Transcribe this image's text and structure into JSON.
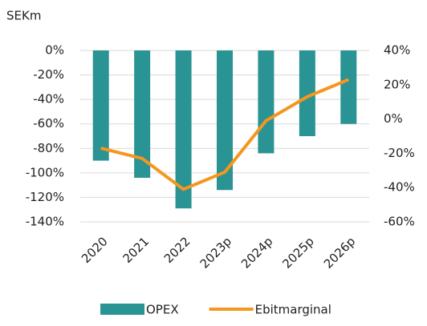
{
  "chart_data": {
    "type": "bar_line",
    "y_axis_label": "SEKm",
    "categories": [
      "2020",
      "2021",
      "2022",
      "2023p",
      "2024p",
      "2025p",
      "2026p"
    ],
    "series": [
      {
        "name": "OPEX",
        "type": "bar",
        "color": "#2a9393",
        "values": [
          -90,
          -104,
          -129,
          -114,
          -84,
          -70,
          -60
        ]
      },
      {
        "name": "Ebitmarginal",
        "type": "line",
        "axis": "y2",
        "color": "#f5961e",
        "values": [
          -17,
          -23,
          -41,
          -31,
          -1,
          13,
          23
        ]
      }
    ],
    "ylim": [
      -140,
      0
    ],
    "yticks": [
      {
        "value": 0,
        "label": "0%"
      },
      {
        "value": -20,
        "label": "-20%"
      },
      {
        "value": -40,
        "label": "-40%"
      },
      {
        "value": -60,
        "label": "-60%"
      },
      {
        "value": -80,
        "label": "-80%"
      },
      {
        "value": -100,
        "label": "-100%"
      },
      {
        "value": -120,
        "label": "-120%"
      },
      {
        "value": -140,
        "label": "-140%"
      }
    ],
    "y2lim": [
      -60,
      40
    ],
    "y2ticks": [
      {
        "value": 40,
        "label": "40%"
      },
      {
        "value": 20,
        "label": "20%"
      },
      {
        "value": 0,
        "label": "0%"
      },
      {
        "value": -20,
        "label": "-20%"
      },
      {
        "value": -40,
        "label": "-40%"
      },
      {
        "value": -60,
        "label": "-60%"
      }
    ],
    "grid": true,
    "legend": "bottom"
  }
}
